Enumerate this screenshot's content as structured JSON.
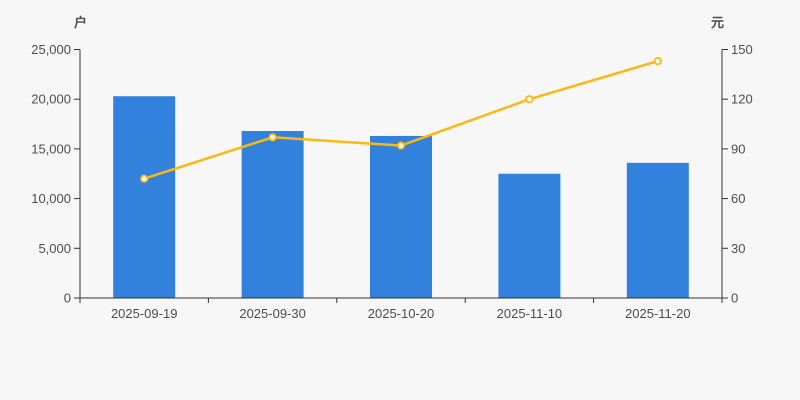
{
  "chart_data": {
    "type": "bar",
    "subtype": "bar+line dual axis",
    "title": "",
    "categories": [
      "2025-09-19",
      "2025-09-30",
      "2025-10-20",
      "2025-11-10",
      "2025-11-20"
    ],
    "series": [
      {
        "name": "户",
        "type": "bar",
        "y_axis": "left",
        "color": "#3282dd",
        "values": [
          20300,
          16800,
          16300,
          12500,
          13600
        ]
      },
      {
        "name": "元",
        "type": "line",
        "y_axis": "right",
        "color": "#fcb810",
        "marker": "open-circle",
        "values": [
          72,
          97,
          92,
          120,
          143
        ]
      }
    ],
    "left_axis": {
      "name": "户",
      "min": 0,
      "max": 25000,
      "tick_step": 5000,
      "tick_labels": [
        "0",
        "5,000",
        "10,000",
        "15,000",
        "20,000",
        "25,000"
      ]
    },
    "right_axis": {
      "name": "元",
      "min": 0,
      "max": 150,
      "tick_step": 30,
      "tick_labels": [
        "0",
        "30",
        "60",
        "90",
        "120",
        "150"
      ]
    },
    "grid": false,
    "legend_position": "none"
  },
  "colors": {
    "background": "#f7f7f7",
    "axis_line": "#333333",
    "tick_text": "#4d4d4d",
    "bar": "#3282dd",
    "line": "#fcb810",
    "marker_fill": "#ffffff"
  }
}
